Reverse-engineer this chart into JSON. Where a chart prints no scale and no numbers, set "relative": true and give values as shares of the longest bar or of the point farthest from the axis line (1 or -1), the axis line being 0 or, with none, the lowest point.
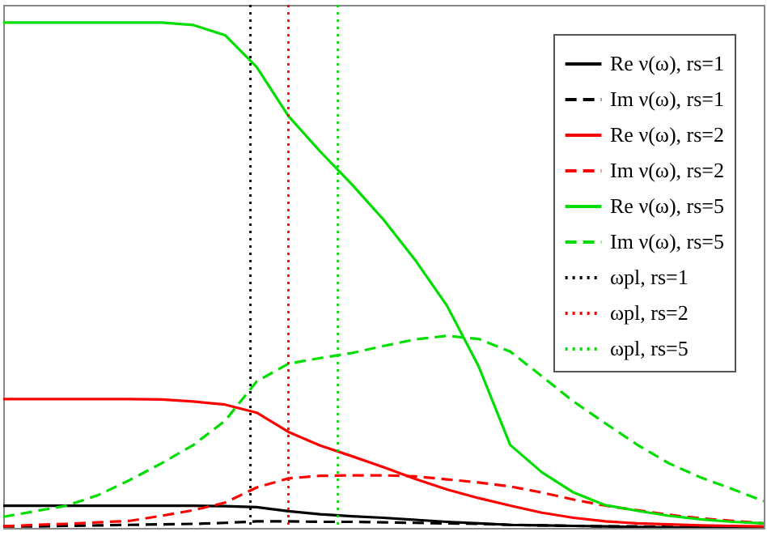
{
  "chart_data": {
    "type": "line",
    "relative": true,
    "grid": false,
    "legend": "top right",
    "marker": "none",
    "categories": [
      null,
      null,
      null,
      null,
      null,
      null,
      null,
      null,
      null,
      null,
      null,
      null,
      null,
      null,
      null,
      null,
      null,
      null,
      null,
      null,
      null,
      null,
      null,
      null,
      null
    ],
    "series": [
      {
        "name": "Re ν(ω), rs=1",
        "color": "#000000",
        "line_style": "solid",
        "values": [
          0.044,
          0.044,
          0.044,
          0.044,
          0.044,
          0.044,
          0.044,
          0.043,
          0.041,
          0.033,
          0.027,
          0.023,
          0.02,
          0.016,
          0.012,
          0.009,
          0.006,
          0.005,
          0.004,
          0.003,
          0.002,
          0.001,
          0.001,
          0,
          0
        ]
      },
      {
        "name": "Im ν(ω), rs=1",
        "color": "#000000",
        "line_style": "dashed",
        "values": [
          0.003,
          0.003,
          0.004,
          0.005,
          0.006,
          0.007,
          0.008,
          0.01,
          0.013,
          0.013,
          0.012,
          0.012,
          0.011,
          0.01,
          0.009,
          0.008,
          0.006,
          0.005,
          0.004,
          0.003,
          0.003,
          0.002,
          0.001,
          0.001,
          0
        ]
      },
      {
        "name": "Re ν(ω), rs=2",
        "color": "#ff0000",
        "line_style": "solid",
        "values": [
          0.255,
          0.255,
          0.255,
          0.255,
          0.255,
          0.254,
          0.25,
          0.244,
          0.228,
          0.19,
          0.163,
          0.142,
          0.12,
          0.097,
          0.076,
          0.059,
          0.044,
          0.03,
          0.02,
          0.013,
          0.009,
          0.007,
          0.005,
          0.004,
          0.003
        ]
      },
      {
        "name": "Im ν(ω), rs=2",
        "color": "#ff0000",
        "line_style": "dashed",
        "values": [
          0.003,
          0.006,
          0.008,
          0.011,
          0.014,
          0.024,
          0.035,
          0.05,
          0.08,
          0.098,
          0.103,
          0.104,
          0.104,
          0.102,
          0.096,
          0.09,
          0.082,
          0.07,
          0.056,
          0.044,
          0.035,
          0.026,
          0.019,
          0.014,
          0.009
        ]
      },
      {
        "name": "Re ν(ω), rs=5",
        "color": "#00dd00",
        "line_style": "solid",
        "values": [
          1.0,
          1.0,
          1.0,
          1.0,
          1.0,
          1.0,
          0.995,
          0.975,
          0.912,
          0.815,
          0.745,
          0.68,
          0.61,
          0.53,
          0.44,
          0.32,
          0.164,
          0.11,
          0.07,
          0.045,
          0.034,
          0.024,
          0.017,
          0.012,
          0.009
        ]
      },
      {
        "name": "Im ν(ω), rs=5",
        "color": "#00dd00",
        "line_style": "dashed",
        "values": [
          0.022,
          0.033,
          0.044,
          0.065,
          0.095,
          0.128,
          0.164,
          0.212,
          0.29,
          0.325,
          0.336,
          0.346,
          0.36,
          0.373,
          0.38,
          0.374,
          0.349,
          0.3,
          0.25,
          0.207,
          0.165,
          0.128,
          0.1,
          0.077,
          0.053
        ]
      }
    ],
    "annotations": [
      "ωpl, rs=1",
      "ωpl, rs=2",
      "ωpl, rs=5"
    ]
  }
}
